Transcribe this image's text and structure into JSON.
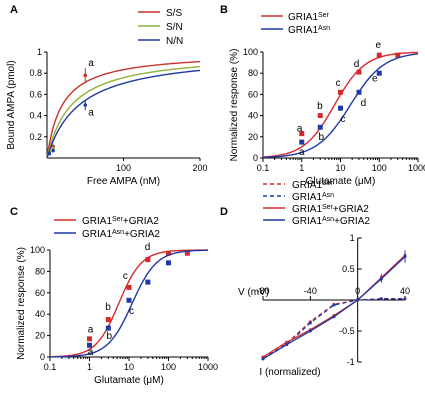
{
  "chart_data": [
    {
      "id": "A",
      "type": "line",
      "panel_label": "A",
      "xlabel": "Free AMPA (nM)",
      "ylabel": "Bound AMPA (pmol)",
      "xlim": [
        0,
        200
      ],
      "ylim": [
        0,
        1
      ],
      "xticks": [
        100,
        200
      ],
      "yticks": [
        0.2,
        0.4,
        0.6,
        0.8,
        1.0
      ],
      "ytick_labels": [
        "0.2",
        "0.4",
        "0.6",
        "0.8",
        "1"
      ],
      "legend_position": "top-right",
      "series": [
        {
          "name": "S/S",
          "color": "#c8322c",
          "bmax": 1.0,
          "kd": 20,
          "points": [
            {
              "x": 3,
              "y": 0.05
            },
            {
              "x": 8,
              "y": 0.11
            },
            {
              "x": 50,
              "y": 0.78,
              "err": 0.07
            }
          ]
        },
        {
          "name": "S/N",
          "color": "#8fb23a",
          "bmax": 1.0,
          "kd": 32,
          "points": [
            {
              "x": 3,
              "y": 0.06
            },
            {
              "x": 8,
              "y": 0.09
            }
          ]
        },
        {
          "name": "N/N",
          "color": "#1f3a9e",
          "bmax": 1.0,
          "kd": 42,
          "points": [
            {
              "x": 3,
              "y": 0.04
            },
            {
              "x": 8,
              "y": 0.07
            },
            {
              "x": 50,
              "y": 0.5,
              "err": 0.05
            }
          ]
        }
      ],
      "annotations": [
        {
          "text": "a",
          "x": 54,
          "y": 0.87
        },
        {
          "text": "a",
          "x": 54,
          "y": 0.4
        }
      ]
    },
    {
      "id": "B",
      "type": "line",
      "panel_label": "B",
      "xlabel": "Glutamate (μM)",
      "ylabel": "Normalized response (%)",
      "xscale": "log",
      "xlim": [
        0.1,
        1000
      ],
      "ylim": [
        0,
        100
      ],
      "xticks": [
        0.1,
        1,
        10,
        100,
        1000
      ],
      "xtick_labels": [
        "0.1",
        "1",
        "10",
        "100",
        "1000"
      ],
      "yticks": [
        0,
        20,
        40,
        60,
        80,
        100
      ],
      "legend_position": "top-right",
      "series": [
        {
          "name": "GRIA1Ser",
          "legend_base": "GRIA1",
          "legend_sup": "Ser",
          "color": "#d42a2a",
          "ec50": 7,
          "hill": 1.1,
          "points": [
            {
              "x": 1,
              "y": 23
            },
            {
              "x": 3,
              "y": 40
            },
            {
              "x": 10,
              "y": 62
            },
            {
              "x": 30,
              "y": 81
            },
            {
              "x": 100,
              "y": 97
            },
            {
              "x": 300,
              "y": 97
            }
          ]
        },
        {
          "name": "GRIA1Asn",
          "legend_base": "GRIA1",
          "legend_sup": "Asn",
          "color": "#1f3aa8",
          "ec50": 18,
          "hill": 1.0,
          "points": [
            {
              "x": 1,
              "y": 15
            },
            {
              "x": 3,
              "y": 29
            },
            {
              "x": 10,
              "y": 47
            },
            {
              "x": 30,
              "y": 62
            },
            {
              "x": 100,
              "y": 80
            }
          ]
        }
      ],
      "annotations": [
        {
          "text": "a",
          "x": 0.75,
          "y": 25
        },
        {
          "text": "b",
          "x": 2.5,
          "y": 46
        },
        {
          "text": "c",
          "x": 7.5,
          "y": 68
        },
        {
          "text": "d",
          "x": 22,
          "y": 86
        },
        {
          "text": "e",
          "x": 80,
          "y": 104
        },
        {
          "text": "a",
          "x": 0.85,
          "y": 3
        },
        {
          "text": "b",
          "x": 2.7,
          "y": 17
        },
        {
          "text": "c",
          "x": 10,
          "y": 34
        },
        {
          "text": "d",
          "x": 33,
          "y": 49
        },
        {
          "text": "e",
          "x": 65,
          "y": 72
        }
      ]
    },
    {
      "id": "C",
      "type": "line",
      "panel_label": "C",
      "xlabel": "Glutamate (μM)",
      "ylabel": "Normalized response (%)",
      "xscale": "log",
      "xlim": [
        0.1,
        1000
      ],
      "ylim": [
        0,
        100
      ],
      "xticks": [
        0.1,
        1,
        10,
        100,
        1000
      ],
      "xtick_labels": [
        "0.1",
        "1",
        "10",
        "100",
        "1000"
      ],
      "yticks": [
        0,
        20,
        40,
        60,
        80,
        100
      ],
      "legend_position": "top-right",
      "series": [
        {
          "name": "GRIA1Ser+GRIA2",
          "legend_base": "GRIA1",
          "legend_sup": "Ser",
          "legend_suffix": "+GRIA2",
          "color": "#d42a2a",
          "ec50": 5.5,
          "hill": 1.5,
          "points": [
            {
              "x": 1,
              "y": 17
            },
            {
              "x": 3,
              "y": 35
            },
            {
              "x": 10,
              "y": 65
            },
            {
              "x": 30,
              "y": 91
            },
            {
              "x": 100,
              "y": 97
            },
            {
              "x": 300,
              "y": 97
            }
          ]
        },
        {
          "name": "GRIA1Asn+GRIA2",
          "legend_base": "GRIA1",
          "legend_sup": "Asn",
          "legend_suffix": "+GRIA2",
          "color": "#1f3aa8",
          "ec50": 12,
          "hill": 1.4,
          "points": [
            {
              "x": 1,
              "y": 11
            },
            {
              "x": 3,
              "y": 27
            },
            {
              "x": 10,
              "y": 53
            },
            {
              "x": 30,
              "y": 70
            },
            {
              "x": 100,
              "y": 88
            }
          ]
        }
      ],
      "annotations": [
        {
          "text": "a",
          "x": 0.9,
          "y": 23
        },
        {
          "text": "b",
          "x": 2.5,
          "y": 44
        },
        {
          "text": "c",
          "x": 7,
          "y": 73
        },
        {
          "text": "d",
          "x": 25,
          "y": 100
        },
        {
          "text": "a",
          "x": 0.9,
          "y": 2
        },
        {
          "text": "b",
          "x": 2.7,
          "y": 17
        },
        {
          "text": "c",
          "x": 10,
          "y": 40
        }
      ]
    },
    {
      "id": "D",
      "type": "line",
      "panel_label": "D",
      "xlabel": "I (normalized)",
      "ylabel": "V (mV)",
      "xlim": [
        -80,
        40
      ],
      "ylim": [
        -1,
        1
      ],
      "xticks": [
        -80,
        -40,
        0,
        40
      ],
      "yticks": [
        -1,
        -0.5,
        0.5,
        1
      ],
      "ytick_labels": [
        "-1",
        "-0.5",
        "0.5",
        "1"
      ],
      "legend_position": "top-right",
      "series": [
        {
          "name": "GRIA1Ser",
          "legend_base": "GRIA1",
          "legend_sup": "Ser",
          "color": "#d42a2a",
          "dash": true,
          "points": [
            {
              "x": -80,
              "y": -0.93
            },
            {
              "x": -60,
              "y": -0.7
            },
            {
              "x": -40,
              "y": -0.35
            },
            {
              "x": -20,
              "y": -0.07
            },
            {
              "x": 0,
              "y": 0.0
            },
            {
              "x": 20,
              "y": 0.02
            },
            {
              "x": 40,
              "y": 0.02
            }
          ]
        },
        {
          "name": "GRIA1Asn",
          "legend_base": "GRIA1",
          "legend_sup": "Asn",
          "color": "#1f3aa8",
          "dash": true,
          "points": [
            {
              "x": -80,
              "y": -0.95
            },
            {
              "x": -60,
              "y": -0.72
            },
            {
              "x": -40,
              "y": -0.37
            },
            {
              "x": -20,
              "y": -0.08
            },
            {
              "x": 0,
              "y": 0.0
            },
            {
              "x": 20,
              "y": 0.02
            },
            {
              "x": 40,
              "y": 0.02
            }
          ]
        },
        {
          "name": "GRIA1Ser+GRIA2",
          "legend_base": "GRIA1",
          "legend_sup": "Ser",
          "legend_suffix": "+GRIA2",
          "color": "#d42a2a",
          "dash": false,
          "points": [
            {
              "x": -80,
              "y": -0.92
            },
            {
              "x": -60,
              "y": -0.68
            },
            {
              "x": -40,
              "y": -0.48
            },
            {
              "x": -20,
              "y": -0.25
            },
            {
              "x": 0,
              "y": 0.0
            },
            {
              "x": 20,
              "y": 0.36,
              "err": 0.06
            },
            {
              "x": 40,
              "y": 0.72,
              "err": 0.08
            }
          ]
        },
        {
          "name": "GRIA1Asn+GRIA2",
          "legend_base": "GRIA1",
          "legend_sup": "Asn",
          "legend_suffix": "+GRIA2",
          "color": "#1f3aa8",
          "dash": false,
          "points": [
            {
              "x": -80,
              "y": -0.95
            },
            {
              "x": -60,
              "y": -0.72
            },
            {
              "x": -40,
              "y": -0.5
            },
            {
              "x": -20,
              "y": -0.27
            },
            {
              "x": 0,
              "y": 0.0
            },
            {
              "x": 20,
              "y": 0.34,
              "err": 0.06
            },
            {
              "x": 40,
              "y": 0.7,
              "err": 0.1
            }
          ]
        }
      ]
    }
  ]
}
